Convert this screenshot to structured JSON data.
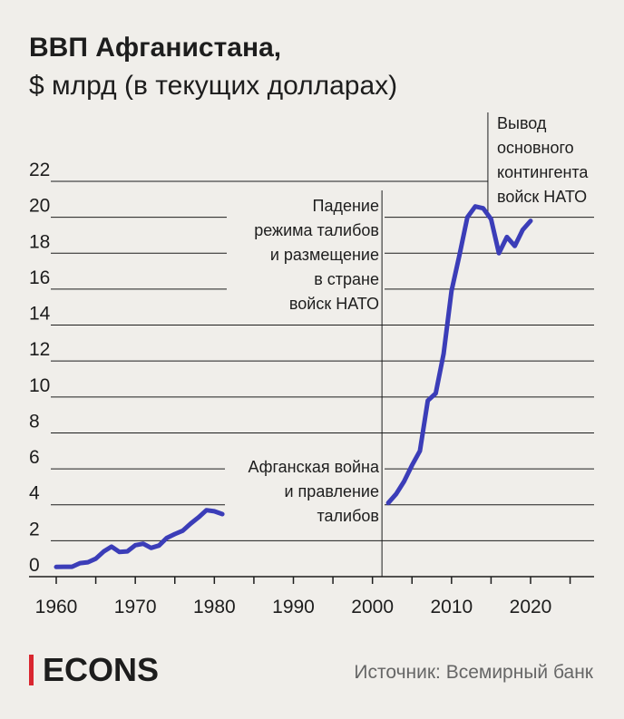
{
  "header": {
    "title": "ВВП Афганистана,",
    "subtitle": "$ млрд (в текущих долларах)"
  },
  "footer": {
    "logo": "ECONS",
    "source": "Источник: Всемирный банк"
  },
  "colors": {
    "line": "#3b3db8",
    "grid": "#1d1d1d",
    "background": "#f0eeea",
    "logo_accent": "#d9262f"
  },
  "chart_data": {
    "type": "line",
    "title": "ВВП Афганистана,",
    "subtitle": "$ млрд (в текущих долларах)",
    "xlim": [
      1960,
      2028
    ],
    "ylim": [
      0,
      22
    ],
    "x_ticks": [
      1960,
      1970,
      1980,
      1990,
      2000,
      2010,
      2020
    ],
    "y_ticks": [
      0,
      2,
      4,
      6,
      8,
      10,
      12,
      14,
      16,
      18,
      20,
      22
    ],
    "grid": "horizontal",
    "series": [
      {
        "name": "",
        "segments": [
          {
            "x": [
              1960,
              1961,
              1962,
              1963,
              1964,
              1965,
              1966,
              1967,
              1968,
              1969,
              1970,
              1971,
              1972,
              1973,
              1974,
              1975,
              1976,
              1977,
              1978,
              1979,
              1980,
              1981
            ],
            "y": [
              0.54,
              0.55,
              0.55,
              0.75,
              0.8,
              1.0,
              1.4,
              1.67,
              1.37,
              1.41,
              1.75,
              1.83,
              1.6,
              1.73,
              2.16,
              2.37,
              2.56,
              2.95,
              3.3,
              3.7,
              3.64,
              3.48
            ]
          },
          {
            "x": [
              2002,
              2003,
              2004,
              2005,
              2006,
              2007,
              2008,
              2009,
              2010,
              2011,
              2012,
              2013,
              2014,
              2015,
              2016,
              2017,
              2018,
              2019,
              2020
            ],
            "y": [
              4.1,
              4.6,
              5.3,
              6.2,
              7.0,
              9.8,
              10.2,
              12.4,
              15.9,
              17.9,
              20.0,
              20.6,
              20.5,
              19.9,
              18.0,
              18.9,
              18.4,
              19.3,
              19.8
            ]
          }
        ]
      }
    ],
    "annotations": [
      {
        "x": 1983,
        "lines": [
          "Афганская война",
          "и правление",
          "талибов"
        ]
      },
      {
        "x": 2001,
        "lines": [
          "Падение",
          "режима талибов",
          "и размещение",
          "в стране",
          "войск НАТО"
        ]
      },
      {
        "x": 2014,
        "lines": [
          "Вывод",
          "основного",
          "контингента",
          "войск НАТО"
        ]
      }
    ]
  }
}
